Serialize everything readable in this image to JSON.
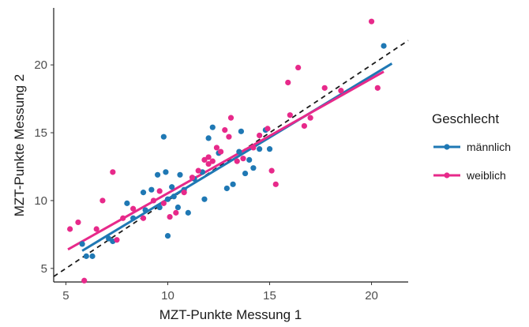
{
  "chart_data": {
    "type": "scatter",
    "xlabel": "MZT-Punkte Messung 1",
    "ylabel": "MZT-Punkte Messung 2",
    "xlim": [
      4.4,
      21.8
    ],
    "ylim": [
      4.0,
      24.2
    ],
    "xticks": [
      5,
      10,
      15,
      20
    ],
    "yticks": [
      5,
      10,
      15,
      20
    ],
    "grid": false,
    "legend": {
      "title": "Geschlecht",
      "position": "right"
    },
    "identity_line": {
      "x": [
        4.4,
        21.8
      ],
      "y": [
        4.4,
        21.8
      ],
      "style": "dashed",
      "color": "#1a1a1a"
    },
    "series": [
      {
        "name": "männlich",
        "color": "#1f78b4",
        "points": [
          [
            5.8,
            6.8
          ],
          [
            6.0,
            5.9
          ],
          [
            6.3,
            5.9
          ],
          [
            7.1,
            7.2
          ],
          [
            7.3,
            7.0
          ],
          [
            8.0,
            9.8
          ],
          [
            8.3,
            8.7
          ],
          [
            8.8,
            10.6
          ],
          [
            8.9,
            9.3
          ],
          [
            9.2,
            10.8
          ],
          [
            9.5,
            11.9
          ],
          [
            9.6,
            9.5
          ],
          [
            9.8,
            14.7
          ],
          [
            9.9,
            12.1
          ],
          [
            10.0,
            10.1
          ],
          [
            10.0,
            7.4
          ],
          [
            10.2,
            11.0
          ],
          [
            10.3,
            10.3
          ],
          [
            10.5,
            9.5
          ],
          [
            10.6,
            11.9
          ],
          [
            10.8,
            10.8
          ],
          [
            11.0,
            9.1
          ],
          [
            11.3,
            11.6
          ],
          [
            11.7,
            12.1
          ],
          [
            11.8,
            10.1
          ],
          [
            12.0,
            14.6
          ],
          [
            12.2,
            15.4
          ],
          [
            12.5,
            13.5
          ],
          [
            12.9,
            10.9
          ],
          [
            13.2,
            11.2
          ],
          [
            13.5,
            13.6
          ],
          [
            13.6,
            15.1
          ],
          [
            13.8,
            12.0
          ],
          [
            14.0,
            13.0
          ],
          [
            14.2,
            12.4
          ],
          [
            14.5,
            13.8
          ],
          [
            14.8,
            15.2
          ],
          [
            15.0,
            13.8
          ],
          [
            20.6,
            21.4
          ]
        ],
        "fit": {
          "x": [
            5.8,
            21.0
          ],
          "y": [
            6.3,
            20.1
          ]
        }
      },
      {
        "name": "weiblich",
        "color": "#e7298a",
        "points": [
          [
            5.2,
            7.9
          ],
          [
            5.6,
            8.4
          ],
          [
            5.9,
            4.1
          ],
          [
            6.5,
            7.9
          ],
          [
            6.8,
            10.0
          ],
          [
            7.3,
            12.1
          ],
          [
            7.5,
            7.1
          ],
          [
            7.8,
            8.7
          ],
          [
            8.3,
            9.4
          ],
          [
            8.8,
            8.7
          ],
          [
            9.3,
            10.0
          ],
          [
            9.6,
            10.7
          ],
          [
            9.8,
            9.8
          ],
          [
            10.1,
            8.8
          ],
          [
            10.4,
            9.1
          ],
          [
            10.8,
            10.6
          ],
          [
            11.2,
            11.7
          ],
          [
            11.5,
            12.2
          ],
          [
            11.8,
            13.0
          ],
          [
            12.0,
            12.7
          ],
          [
            12.0,
            13.2
          ],
          [
            12.2,
            12.9
          ],
          [
            12.4,
            13.9
          ],
          [
            12.6,
            13.6
          ],
          [
            12.8,
            15.2
          ],
          [
            13.0,
            14.7
          ],
          [
            13.1,
            16.1
          ],
          [
            13.4,
            12.9
          ],
          [
            13.7,
            13.1
          ],
          [
            14.2,
            13.9
          ],
          [
            14.5,
            14.8
          ],
          [
            14.9,
            15.3
          ],
          [
            15.1,
            12.2
          ],
          [
            15.3,
            11.2
          ],
          [
            15.9,
            18.7
          ],
          [
            16.0,
            16.3
          ],
          [
            16.4,
            19.8
          ],
          [
            16.7,
            15.5
          ],
          [
            17.0,
            16.1
          ],
          [
            17.7,
            18.3
          ],
          [
            18.5,
            18.1
          ],
          [
            20.0,
            23.2
          ],
          [
            20.3,
            18.3
          ]
        ],
        "fit": {
          "x": [
            5.1,
            20.6
          ],
          "y": [
            6.4,
            19.5
          ]
        }
      }
    ]
  }
}
